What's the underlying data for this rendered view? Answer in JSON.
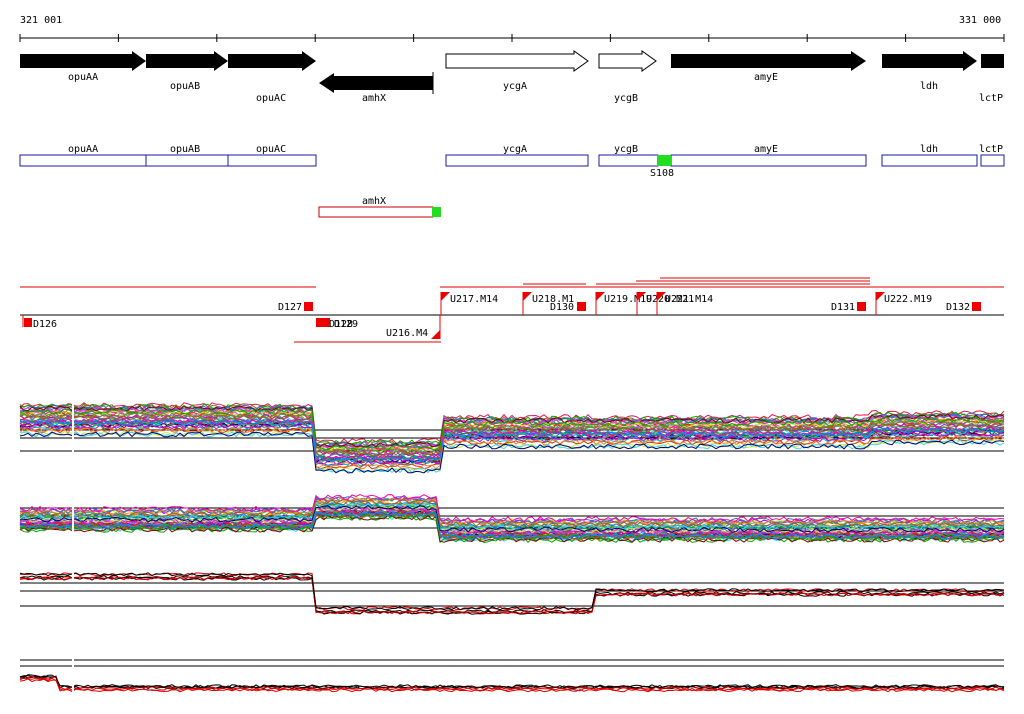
{
  "coordinates": {
    "start": "321 001",
    "end": "331 000"
  },
  "colors": {
    "arrow_fill": "#000000",
    "box_outline": "#1a1aa6",
    "box_outline_reverse": "#cc0000",
    "marker_green": "#22dd22",
    "marker_red": "#ee0000",
    "red_line": "#dd0000"
  },
  "gene_arrows": [
    {
      "name": "opuAA",
      "strand": "+",
      "filled": true
    },
    {
      "name": "opuAB",
      "strand": "+",
      "filled": true
    },
    {
      "name": "opuAC",
      "strand": "+",
      "filled": true
    },
    {
      "name": "amhX",
      "strand": "-",
      "filled": true
    },
    {
      "name": "ycgA",
      "strand": "+",
      "filled": false
    },
    {
      "name": "ycgB",
      "strand": "+",
      "filled": false
    },
    {
      "name": "amyE",
      "strand": "+",
      "filled": true
    },
    {
      "name": "ldh",
      "strand": "+",
      "filled": true
    },
    {
      "name": "lctP",
      "strand": "+",
      "filled": true
    }
  ],
  "gene_boxes": [
    "opuAA",
    "opuAB",
    "opuAC",
    "ycgA",
    "ycgB",
    "amyE",
    "ldh",
    "lctP"
  ],
  "reverse_box": "amhX",
  "site_label": "S108",
  "features": [
    {
      "label": "D126",
      "type": "down"
    },
    {
      "label": "D127",
      "type": "up"
    },
    {
      "label": "D128",
      "type": "down"
    },
    {
      "label": "D129",
      "type": "down"
    },
    {
      "label": "U216.M4",
      "type": "flag-down"
    },
    {
      "label": "U217.M14",
      "type": "flag-up"
    },
    {
      "label": "U218.M1",
      "type": "flag-up"
    },
    {
      "label": "D130",
      "type": "up"
    },
    {
      "label": "U219.M19",
      "type": "flag-up"
    },
    {
      "label": "U220.M21",
      "type": "flag-up"
    },
    {
      "label": "U221.M14",
      "type": "flag-up"
    },
    {
      "label": "D131",
      "type": "up"
    },
    {
      "label": "U222.M19",
      "type": "flag-up"
    },
    {
      "label": "D132",
      "type": "up"
    }
  ],
  "tracks": [
    {
      "name": "expression-panel-1",
      "line_count": 40
    },
    {
      "name": "expression-panel-2",
      "line_count": 40
    },
    {
      "name": "expression-panel-3",
      "line_count": 6
    },
    {
      "name": "expression-panel-4",
      "line_count": 6
    }
  ]
}
